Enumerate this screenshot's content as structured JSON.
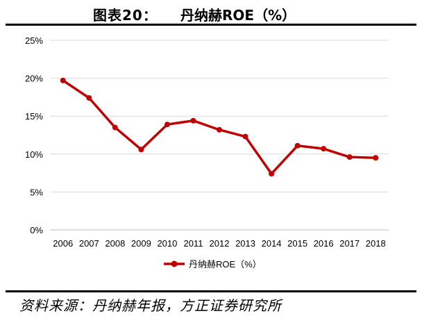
{
  "figure": {
    "label": "图表20：",
    "title": "丹纳赫ROE（%）"
  },
  "chart_data": {
    "type": "line",
    "x": [
      "2006",
      "2007",
      "2008",
      "2009",
      "2010",
      "2011",
      "2012",
      "2013",
      "2014",
      "2015",
      "2016",
      "2017",
      "2018"
    ],
    "series": [
      {
        "name": "丹纳赫ROE（%）",
        "values": [
          19.7,
          17.4,
          13.5,
          10.6,
          13.9,
          14.4,
          13.2,
          12.3,
          7.4,
          11.1,
          10.7,
          9.6,
          9.5
        ]
      }
    ],
    "ylim": [
      0,
      25
    ],
    "yticks": [
      0,
      5,
      10,
      15,
      20,
      25
    ],
    "ytick_labels": [
      "0%",
      "5%",
      "10%",
      "15%",
      "20%",
      "25%"
    ],
    "grid": "horizontal",
    "legend": "bottom-center",
    "line_color": "#c00000"
  },
  "source": "资料来源：丹纳赫年报，方正证券研究所"
}
